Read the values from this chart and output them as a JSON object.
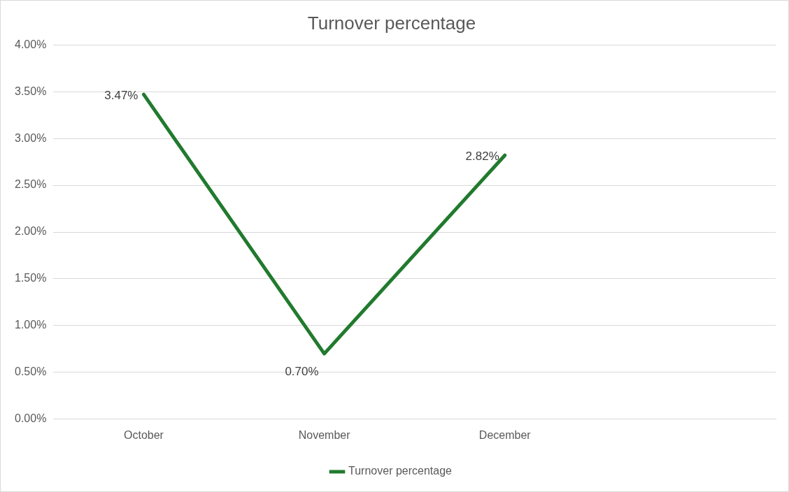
{
  "chart_data": {
    "type": "line",
    "title": "Turnover percentage",
    "categories": [
      "October",
      "November",
      "December",
      null
    ],
    "series": [
      {
        "name": "Turnover percentage",
        "color": "#217a2e",
        "values": [
          3.47,
          0.7,
          2.82,
          null
        ],
        "value_labels": [
          "3.47%",
          "0.70%",
          "2.82%",
          null
        ]
      }
    ],
    "ylim": [
      0,
      4
    ],
    "yticks": [
      {
        "value": 0,
        "label": "0.00%"
      },
      {
        "value": 0.5,
        "label": "0.50%"
      },
      {
        "value": 1,
        "label": "1.00%"
      },
      {
        "value": 1.5,
        "label": "1.50%"
      },
      {
        "value": 2,
        "label": "2.00%"
      },
      {
        "value": 2.5,
        "label": "2.50%"
      },
      {
        "value": 3,
        "label": "3.00%"
      },
      {
        "value": 3.5,
        "label": "3.50%"
      },
      {
        "value": 4,
        "label": "4.00%"
      }
    ],
    "grid": "y",
    "legend": "bottom",
    "marker": "none",
    "line_style": "solid"
  }
}
